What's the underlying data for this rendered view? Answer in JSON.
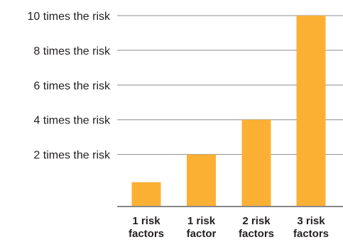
{
  "chart_data": {
    "type": "bar",
    "title": "",
    "xlabel": "",
    "ylabel": "",
    "categories": [
      [
        "1 risk",
        "factors"
      ],
      [
        "1 risk",
        "factor"
      ],
      [
        "2 risk",
        "factors"
      ],
      [
        "3 risk",
        "factors"
      ]
    ],
    "values": [
      1.4,
      3,
      5,
      11
    ],
    "yticks": [
      {
        "value": 3,
        "label": "2 times the risk"
      },
      {
        "value": 5,
        "label": "4 times the risk"
      },
      {
        "value": 7,
        "label": "6 times the risk"
      },
      {
        "value": 9,
        "label": "8 times the risk"
      },
      {
        "value": 11,
        "label": "10 times the risk"
      }
    ],
    "ylim": [
      0,
      11
    ],
    "grid": true,
    "legend": "none",
    "colors": {
      "bar": "#fbb034",
      "grid": "#8c8c8c",
      "baseline": "#888888",
      "text": "#231f20"
    }
  }
}
